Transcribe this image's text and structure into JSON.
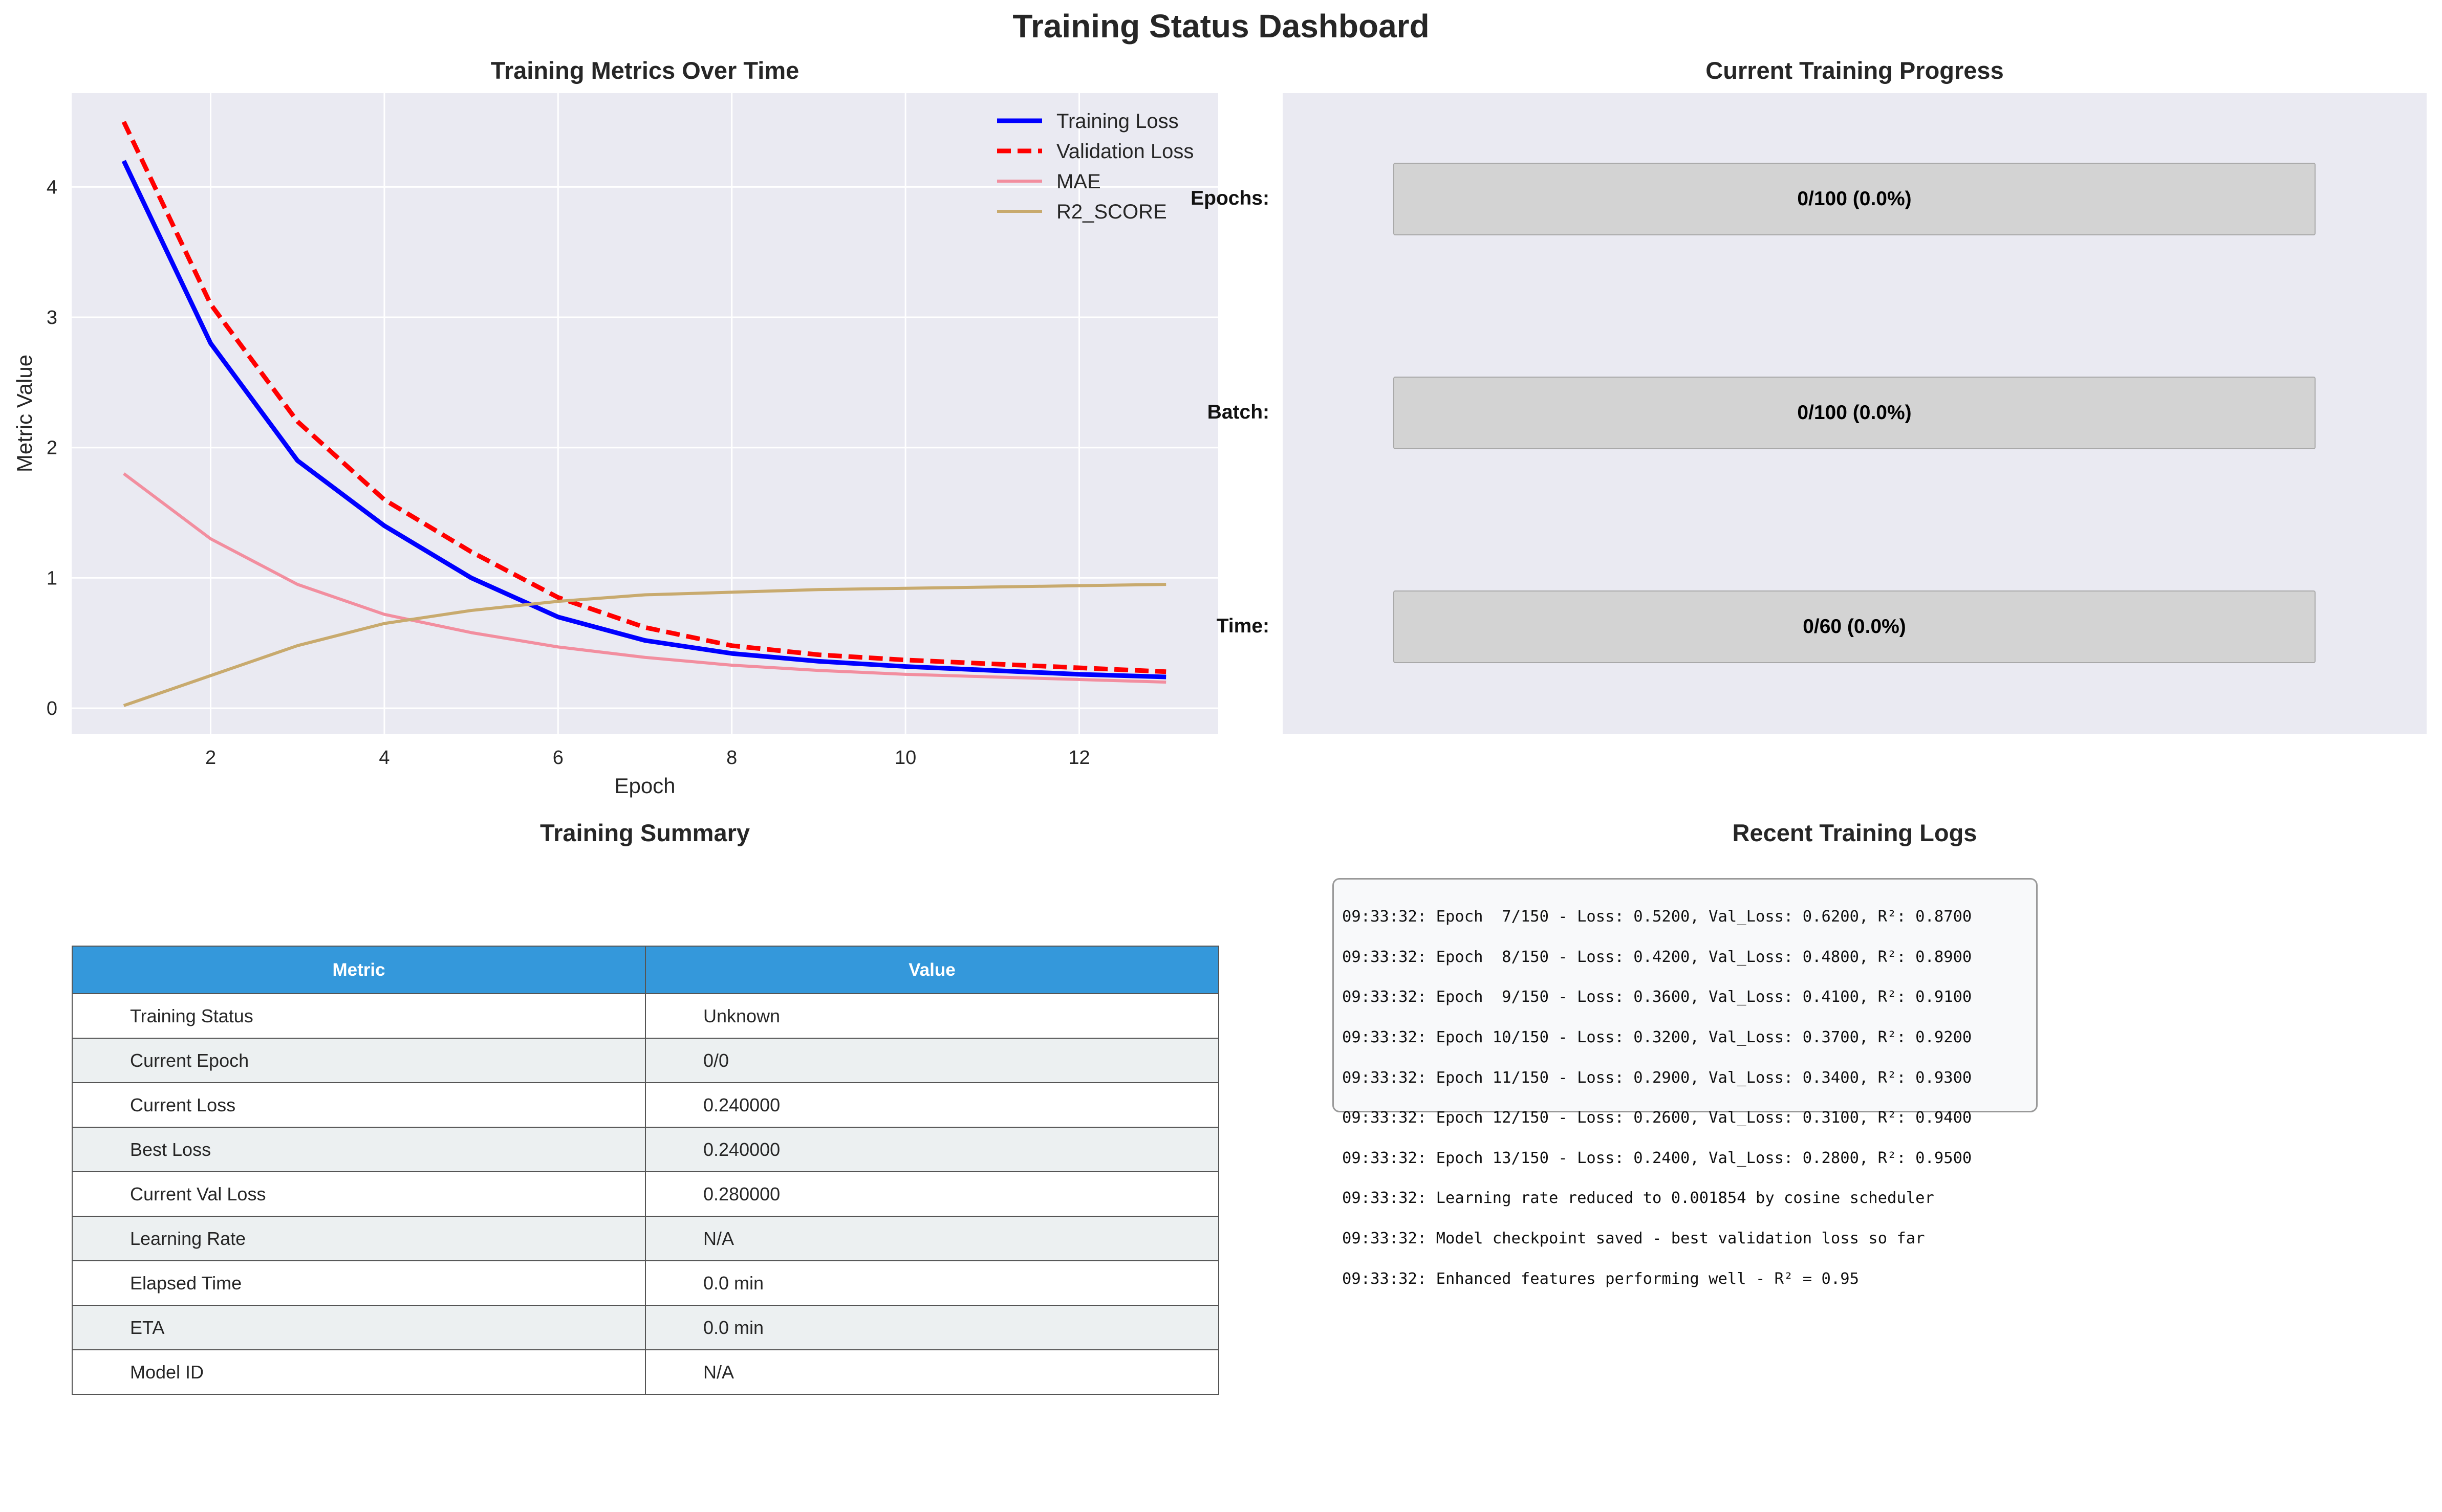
{
  "suptitle": "Training Status Dashboard",
  "metrics_panel": {
    "title": "Training Metrics Over Time"
  },
  "progress_panel": {
    "title": "Current Training Progress",
    "rows": [
      {
        "label": "Epochs:",
        "text": "0/100 (0.0%)",
        "progress": 0.0
      },
      {
        "label": "Batch:",
        "text": "0/100 (0.0%)",
        "progress": 0.0
      },
      {
        "label": "Time:",
        "text": "0/60 (0.0%)",
        "progress": 0.0
      }
    ],
    "bar_color": "#d3d3d3",
    "fill_color": "#2ecc71"
  },
  "summary_panel": {
    "title": "Training Summary",
    "columns": [
      "Metric",
      "Value"
    ],
    "header_color": "#3498db",
    "rows": [
      [
        "Training Status",
        "Unknown"
      ],
      [
        "Current Epoch",
        "0/0"
      ],
      [
        "Current Loss",
        "0.240000"
      ],
      [
        "Best Loss",
        "0.240000"
      ],
      [
        "Current Val Loss",
        "0.280000"
      ],
      [
        "Learning Rate",
        "N/A"
      ],
      [
        "Elapsed Time",
        "0.0 min"
      ],
      [
        "ETA",
        "0.0 min"
      ],
      [
        "Model ID",
        "N/A"
      ]
    ]
  },
  "logs_panel": {
    "title": "Recent Training Logs",
    "lines": [
      "09:33:32: Epoch  7/150 - Loss: 0.5200, Val_Loss: 0.6200, R²: 0.8700",
      "09:33:32: Epoch  8/150 - Loss: 0.4200, Val_Loss: 0.4800, R²: 0.8900",
      "09:33:32: Epoch  9/150 - Loss: 0.3600, Val_Loss: 0.4100, R²: 0.9100",
      "09:33:32: Epoch 10/150 - Loss: 0.3200, Val_Loss: 0.3700, R²: 0.9200",
      "09:33:32: Epoch 11/150 - Loss: 0.2900, Val_Loss: 0.3400, R²: 0.9300",
      "09:33:32: Epoch 12/150 - Loss: 0.2600, Val_Loss: 0.3100, R²: 0.9400",
      "09:33:32: Epoch 13/150 - Loss: 0.2400, Val_Loss: 0.2800, R²: 0.9500",
      "09:33:32: Learning rate reduced to 0.001854 by cosine scheduler",
      "09:33:32: Model checkpoint saved - best validation loss so far",
      "09:33:32: Enhanced features performing well - R² = 0.95"
    ]
  },
  "chart_data": {
    "type": "line",
    "title": "Training Metrics Over Time",
    "xlabel": "Epoch",
    "ylabel": "Metric Value",
    "x": [
      1,
      2,
      3,
      4,
      5,
      6,
      7,
      8,
      9,
      10,
      11,
      12,
      13
    ],
    "xticks": [
      2,
      4,
      6,
      8,
      10,
      12
    ],
    "yticks": [
      0,
      1,
      2,
      3,
      4
    ],
    "xlim": [
      0.4,
      13.6
    ],
    "ylim": [
      -0.2,
      4.72
    ],
    "grid": true,
    "legend_position": "top-right",
    "series": [
      {
        "name": "Training Loss",
        "color": "#0000ff",
        "style": "solid",
        "width": "thick",
        "values": [
          4.2,
          2.8,
          1.9,
          1.4,
          1.0,
          0.7,
          0.52,
          0.42,
          0.36,
          0.32,
          0.29,
          0.26,
          0.24
        ]
      },
      {
        "name": "Validation Loss",
        "color": "#ff0000",
        "style": "dashed",
        "width": "thick",
        "values": [
          4.5,
          3.1,
          2.2,
          1.6,
          1.2,
          0.85,
          0.62,
          0.48,
          0.41,
          0.37,
          0.34,
          0.31,
          0.28
        ]
      },
      {
        "name": "MAE",
        "color": "#f28e9f",
        "style": "solid",
        "width": "normal",
        "values": [
          1.8,
          1.3,
          0.95,
          0.72,
          0.58,
          0.47,
          0.39,
          0.33,
          0.29,
          0.26,
          0.24,
          0.22,
          0.2
        ]
      },
      {
        "name": "R2_SCORE",
        "color": "#c8aa6e",
        "style": "solid",
        "width": "normal",
        "values": [
          0.02,
          0.25,
          0.48,
          0.65,
          0.75,
          0.82,
          0.87,
          0.89,
          0.91,
          0.92,
          0.93,
          0.94,
          0.95
        ]
      }
    ]
  }
}
